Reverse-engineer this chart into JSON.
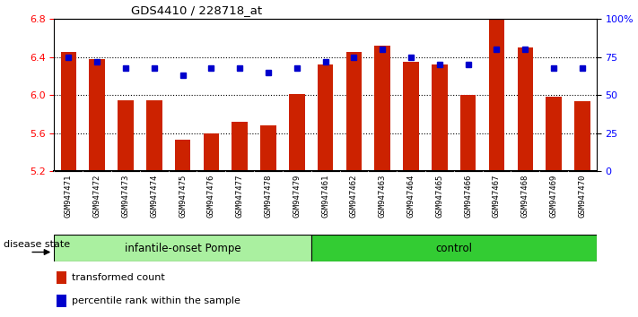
{
  "title": "GDS4410 / 228718_at",
  "samples": [
    "GSM947471",
    "GSM947472",
    "GSM947473",
    "GSM947474",
    "GSM947475",
    "GSM947476",
    "GSM947477",
    "GSM947478",
    "GSM947479",
    "GSM947461",
    "GSM947462",
    "GSM947463",
    "GSM947464",
    "GSM947465",
    "GSM947466",
    "GSM947467",
    "GSM947468",
    "GSM947469",
    "GSM947470"
  ],
  "bar_values": [
    6.45,
    6.38,
    5.95,
    5.95,
    5.53,
    5.6,
    5.72,
    5.68,
    6.01,
    6.32,
    6.45,
    6.52,
    6.35,
    6.32,
    6.0,
    6.8,
    6.5,
    5.98,
    5.94
  ],
  "dot_values": [
    75,
    72,
    68,
    68,
    63,
    68,
    68,
    65,
    68,
    72,
    75,
    80,
    75,
    70,
    70,
    80,
    80,
    68,
    68
  ],
  "groups": [
    {
      "label": "infantile-onset Pompe",
      "start": 0,
      "end": 9,
      "color": "#aaf0a0"
    },
    {
      "label": "control",
      "start": 9,
      "end": 19,
      "color": "#33cc33"
    }
  ],
  "ylim_left": [
    5.2,
    6.8
  ],
  "ylim_right": [
    0,
    100
  ],
  "yticks_left": [
    5.2,
    5.6,
    6.0,
    6.4,
    6.8
  ],
  "yticks_right": [
    0,
    25,
    50,
    75,
    100
  ],
  "ytick_labels_right": [
    "0",
    "25",
    "50",
    "75",
    "100%"
  ],
  "bar_color": "#CC2200",
  "dot_color": "#0000CC",
  "disease_state_label": "disease state",
  "legend_bar_label": "transformed count",
  "legend_dot_label": "percentile rank within the sample",
  "xtick_bg": "#d0d0d0",
  "plot_bg": "#ffffff"
}
